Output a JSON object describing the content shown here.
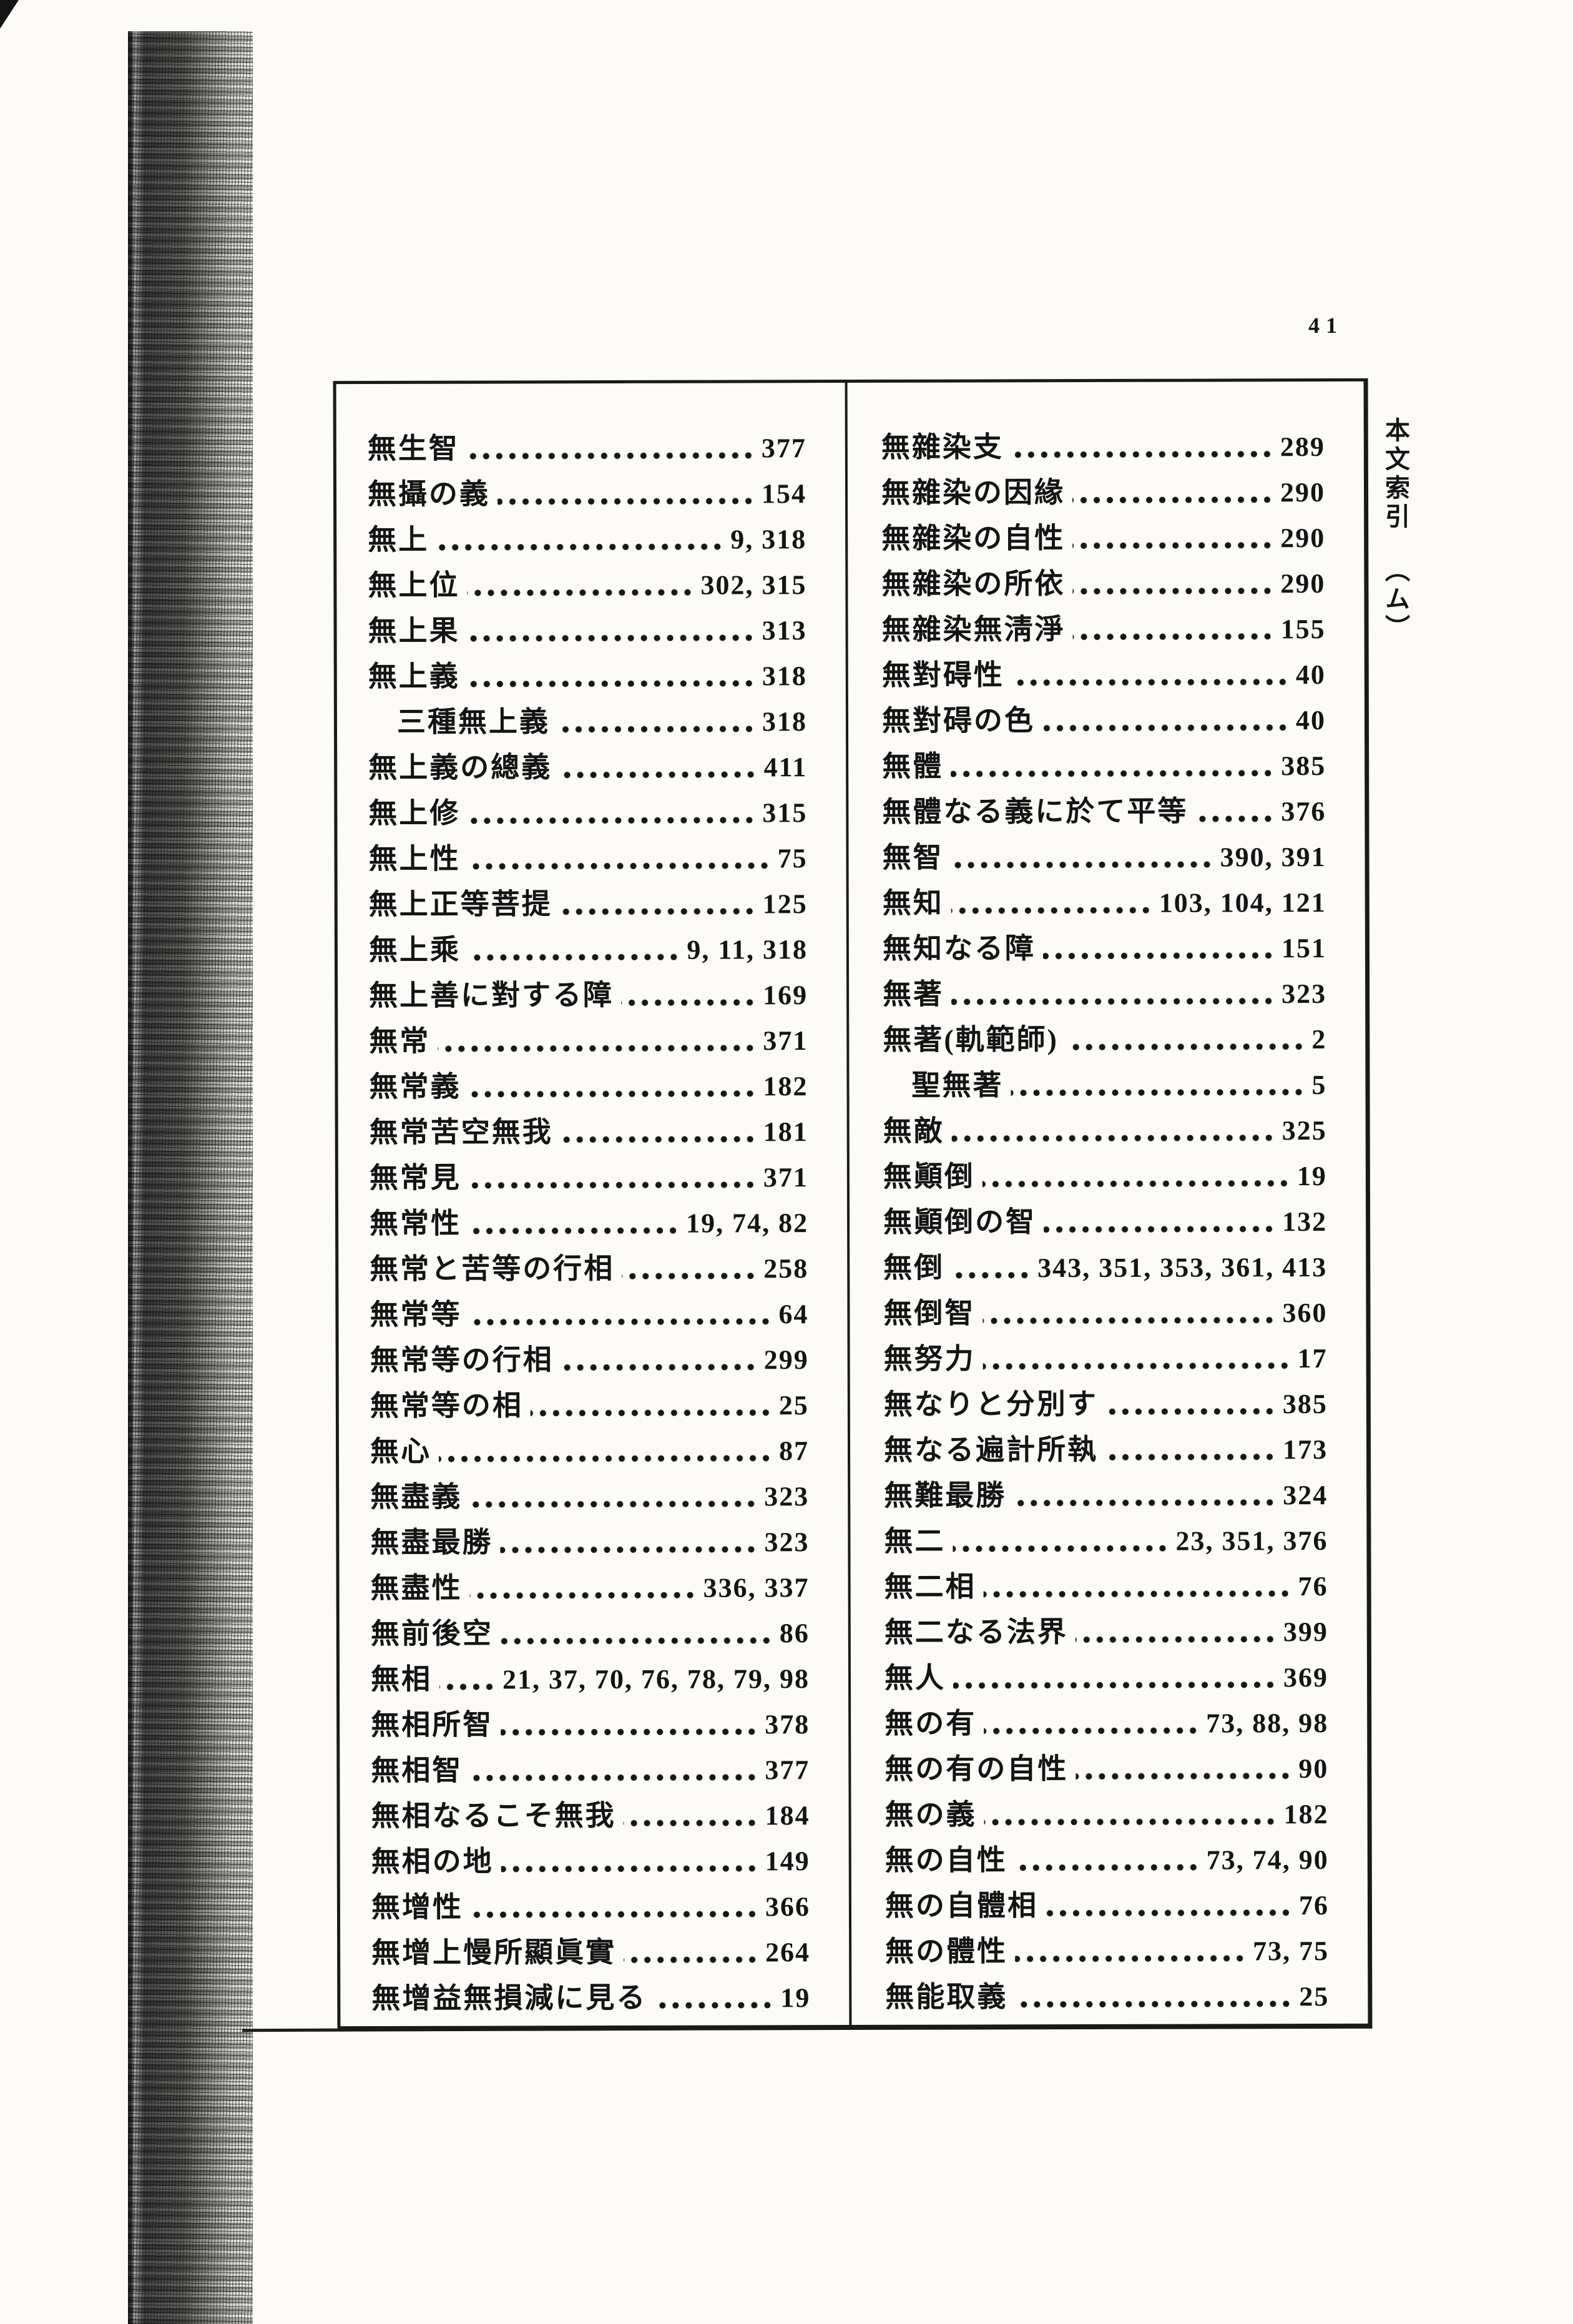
{
  "page": {
    "number": "41",
    "side_caption": "本文索引",
    "side_caption_sub": "（ム）",
    "ink_color": "#141414",
    "paper_color": "#fcfbf8"
  },
  "index": {
    "left_column": [
      {
        "term": "無生智",
        "pages": "377",
        "indent": false
      },
      {
        "term": "無攝の義",
        "pages": "154",
        "indent": false
      },
      {
        "term": "無上",
        "pages": "9, 318",
        "indent": false
      },
      {
        "term": "無上位",
        "pages": "302, 315",
        "indent": false
      },
      {
        "term": "無上果",
        "pages": "313",
        "indent": false
      },
      {
        "term": "無上義",
        "pages": "318",
        "indent": false
      },
      {
        "term": "三種無上義",
        "pages": "318",
        "indent": true
      },
      {
        "term": "無上義の總義",
        "pages": "411",
        "indent": false
      },
      {
        "term": "無上修",
        "pages": "315",
        "indent": false
      },
      {
        "term": "無上性",
        "pages": "75",
        "indent": false
      },
      {
        "term": "無上正等菩提",
        "pages": "125",
        "indent": false
      },
      {
        "term": "無上乘",
        "pages": "9, 11, 318",
        "indent": false
      },
      {
        "term": "無上善に對する障",
        "pages": "169",
        "indent": false
      },
      {
        "term": "無常",
        "pages": "371",
        "indent": false
      },
      {
        "term": "無常義",
        "pages": "182",
        "indent": false
      },
      {
        "term": "無常苦空無我",
        "pages": "181",
        "indent": false
      },
      {
        "term": "無常見",
        "pages": "371",
        "indent": false
      },
      {
        "term": "無常性",
        "pages": "19, 74, 82",
        "indent": false
      },
      {
        "term": "無常と苦等の行相",
        "pages": "258",
        "indent": false
      },
      {
        "term": "無常等",
        "pages": "64",
        "indent": false
      },
      {
        "term": "無常等の行相",
        "pages": "299",
        "indent": false
      },
      {
        "term": "無常等の相",
        "pages": "25",
        "indent": false
      },
      {
        "term": "無心",
        "pages": "87",
        "indent": false
      },
      {
        "term": "無盡義",
        "pages": "323",
        "indent": false
      },
      {
        "term": "無盡最勝",
        "pages": "323",
        "indent": false
      },
      {
        "term": "無盡性",
        "pages": "336, 337",
        "indent": false
      },
      {
        "term": "無前後空",
        "pages": "86",
        "indent": false
      },
      {
        "term": "無相",
        "pages": "21, 37, 70, 76, 78, 79, 98",
        "indent": false
      },
      {
        "term": "無相所智",
        "pages": "378",
        "indent": false
      },
      {
        "term": "無相智",
        "pages": "377",
        "indent": false
      },
      {
        "term": "無相なるこそ無我",
        "pages": "184",
        "indent": false
      },
      {
        "term": "無相の地",
        "pages": "149",
        "indent": false
      },
      {
        "term": "無增性",
        "pages": "366",
        "indent": false
      },
      {
        "term": "無增上慢所顯眞實",
        "pages": "264",
        "indent": false
      },
      {
        "term": "無增益無損減に見る",
        "pages": "19",
        "indent": false
      }
    ],
    "right_column": [
      {
        "term": "無雜染支",
        "pages": "289",
        "indent": false
      },
      {
        "term": "無雜染の因緣",
        "pages": "290",
        "indent": false
      },
      {
        "term": "無雜染の自性",
        "pages": "290",
        "indent": false
      },
      {
        "term": "無雜染の所依",
        "pages": "290",
        "indent": false
      },
      {
        "term": "無雜染無淸淨",
        "pages": "155",
        "indent": false
      },
      {
        "term": "無對碍性",
        "pages": "40",
        "indent": false
      },
      {
        "term": "無對碍の色",
        "pages": "40",
        "indent": false
      },
      {
        "term": "無體",
        "pages": "385",
        "indent": false
      },
      {
        "term": "無體なる義に於て平等",
        "pages": "376",
        "indent": false
      },
      {
        "term": "無智",
        "pages": "390, 391",
        "indent": false
      },
      {
        "term": "無知",
        "pages": "103, 104, 121",
        "indent": false
      },
      {
        "term": "無知なる障",
        "pages": "151",
        "indent": false
      },
      {
        "term": "無著",
        "pages": "323",
        "indent": false
      },
      {
        "term": "無著(軌範師)",
        "pages": "2",
        "indent": false
      },
      {
        "term": "聖無著",
        "pages": "5",
        "indent": true
      },
      {
        "term": "無敵",
        "pages": "325",
        "indent": false
      },
      {
        "term": "無顚倒",
        "pages": "19",
        "indent": false
      },
      {
        "term": "無顚倒の智",
        "pages": "132",
        "indent": false
      },
      {
        "term": "無倒",
        "pages": "343, 351, 353, 361, 413",
        "indent": false
      },
      {
        "term": "無倒智",
        "pages": "360",
        "indent": false
      },
      {
        "term": "無努力",
        "pages": "17",
        "indent": false
      },
      {
        "term": "無なりと分別す",
        "pages": "385",
        "indent": false
      },
      {
        "term": "無なる遍計所執",
        "pages": "173",
        "indent": false
      },
      {
        "term": "無難最勝",
        "pages": "324",
        "indent": false
      },
      {
        "term": "無二",
        "pages": "23, 351, 376",
        "indent": false
      },
      {
        "term": "無二相",
        "pages": "76",
        "indent": false
      },
      {
        "term": "無二なる法界",
        "pages": "399",
        "indent": false
      },
      {
        "term": "無人",
        "pages": "369",
        "indent": false
      },
      {
        "term": "無の有",
        "pages": "73, 88, 98",
        "indent": false
      },
      {
        "term": "無の有の自性",
        "pages": "90",
        "indent": false
      },
      {
        "term": "無の義",
        "pages": "182",
        "indent": false
      },
      {
        "term": "無の自性",
        "pages": "73, 74, 90",
        "indent": false
      },
      {
        "term": "無の自體相",
        "pages": "76",
        "indent": false
      },
      {
        "term": "無の體性",
        "pages": "73, 75",
        "indent": false
      },
      {
        "term": "無能取義",
        "pages": "25",
        "indent": false
      }
    ]
  }
}
